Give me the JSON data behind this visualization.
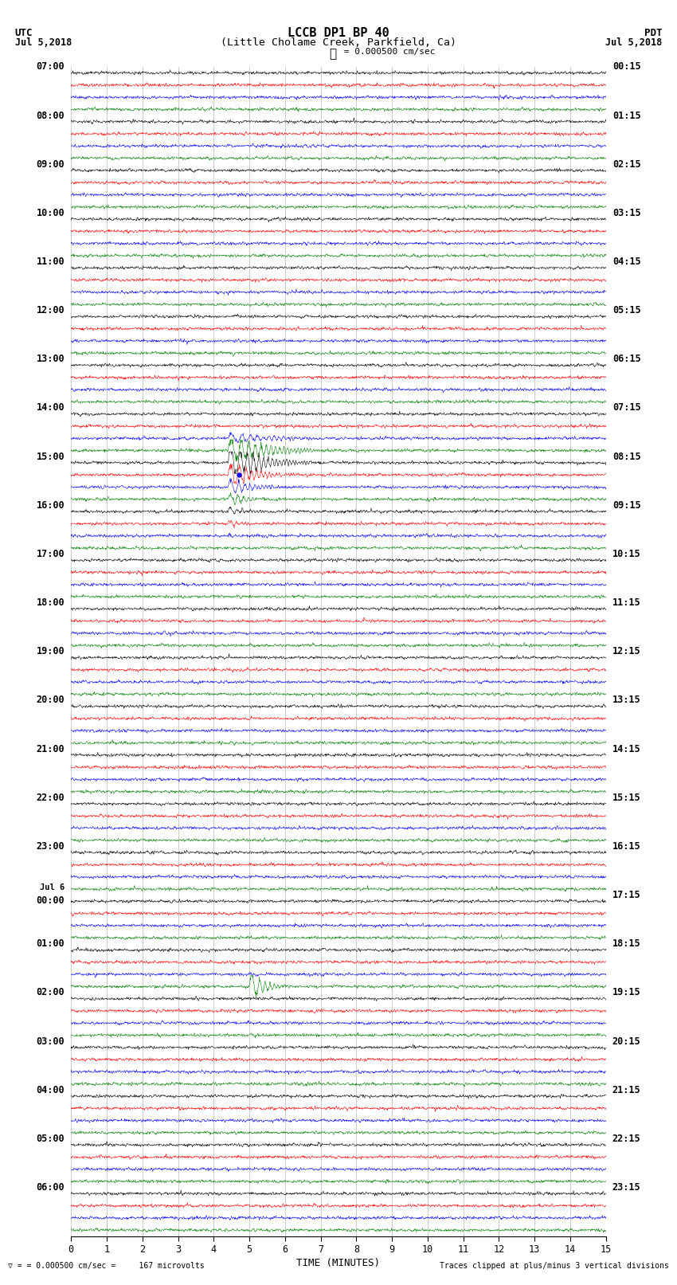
{
  "title_line1": "LCCB DP1 BP 40",
  "title_line2": "(Little Cholame Creek, Parkfield, Ca)",
  "scale_label": "= 0.000500 cm/sec",
  "bottom_left_text": "= 0.000500 cm/sec =     167 microvolts",
  "bottom_right_text": "Traces clipped at plus/minus 3 vertical divisions",
  "utc_label": "UTC",
  "utc_date": "Jul 5,2018",
  "pdt_label": "PDT",
  "pdt_date": "Jul 5,2018",
  "xlabel": "TIME (MINUTES)",
  "n_rows": 96,
  "n_minutes": 15,
  "trace_colors": [
    "black",
    "red",
    "blue",
    "green"
  ],
  "background_color": "#ffffff",
  "left_labels": [
    [
      "07:00",
      "",
      0
    ],
    [
      "08:00",
      "",
      4
    ],
    [
      "09:00",
      "",
      8
    ],
    [
      "10:00",
      "",
      12
    ],
    [
      "11:00",
      "",
      16
    ],
    [
      "12:00",
      "",
      20
    ],
    [
      "13:00",
      "",
      24
    ],
    [
      "14:00",
      "",
      28
    ],
    [
      "15:00",
      "",
      32
    ],
    [
      "16:00",
      "",
      36
    ],
    [
      "17:00",
      "",
      40
    ],
    [
      "18:00",
      "",
      44
    ],
    [
      "19:00",
      "",
      48
    ],
    [
      "20:00",
      "",
      52
    ],
    [
      "21:00",
      "",
      56
    ],
    [
      "22:00",
      "",
      60
    ],
    [
      "23:00",
      "",
      64
    ],
    [
      "00:00",
      "Jul 6",
      68
    ],
    [
      "01:00",
      "",
      72
    ],
    [
      "02:00",
      "",
      76
    ],
    [
      "03:00",
      "",
      80
    ],
    [
      "04:00",
      "",
      84
    ],
    [
      "05:00",
      "",
      88
    ],
    [
      "06:00",
      "",
      92
    ]
  ],
  "right_labels": [
    [
      "00:15",
      0
    ],
    [
      "01:15",
      4
    ],
    [
      "02:15",
      8
    ],
    [
      "03:15",
      12
    ],
    [
      "04:15",
      16
    ],
    [
      "05:15",
      20
    ],
    [
      "06:15",
      24
    ],
    [
      "07:15",
      28
    ],
    [
      "08:15",
      32
    ],
    [
      "09:15",
      36
    ],
    [
      "10:15",
      40
    ],
    [
      "11:15",
      44
    ],
    [
      "12:15",
      48
    ],
    [
      "13:15",
      52
    ],
    [
      "14:15",
      56
    ],
    [
      "15:15",
      60
    ],
    [
      "16:15",
      64
    ],
    [
      "17:15",
      68
    ],
    [
      "18:15",
      72
    ],
    [
      "19:15",
      76
    ],
    [
      "20:15",
      80
    ],
    [
      "21:15",
      84
    ],
    [
      "22:15",
      88
    ],
    [
      "23:15",
      92
    ]
  ]
}
